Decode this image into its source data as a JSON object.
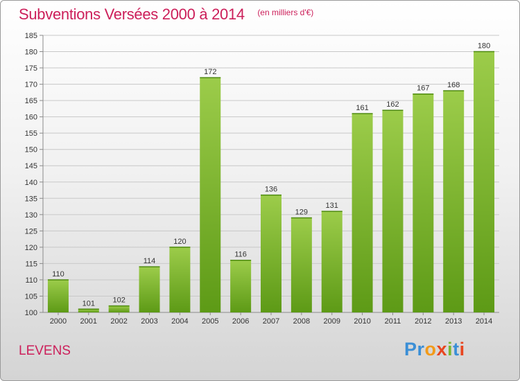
{
  "header": {
    "title": "Subventions Versées 2000 à 2014",
    "subtitle": "(en milliers d'€)"
  },
  "footer": {
    "place": "LEVENS",
    "logo": "Proxiti"
  },
  "colors": {
    "accent": "#cc1f5a",
    "bar_light": "#9ccc4a",
    "bar_dark": "#5d9a16"
  },
  "chart_data": {
    "type": "bar",
    "title": "Subventions Versées 2000 à 2014",
    "subtitle": "(en milliers d'€)",
    "categories": [
      "2000",
      "2001",
      "2002",
      "2003",
      "2004",
      "2005",
      "2006",
      "2007",
      "2008",
      "2009",
      "2010",
      "2011",
      "2012",
      "2013",
      "2014"
    ],
    "values": [
      110,
      101,
      102,
      114,
      120,
      172,
      116,
      136,
      129,
      131,
      161,
      162,
      167,
      168,
      180
    ],
    "xlabel": "",
    "ylabel": "",
    "ylim": [
      100,
      185
    ],
    "yticks": [
      100,
      105,
      110,
      115,
      120,
      125,
      130,
      135,
      140,
      145,
      150,
      155,
      160,
      165,
      170,
      175,
      180,
      185
    ],
    "grid": true,
    "data_labels": true
  }
}
